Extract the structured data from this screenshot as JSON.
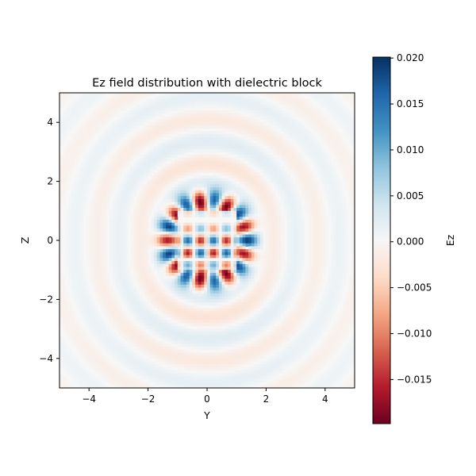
{
  "chart_data": {
    "type": "heatmap",
    "title": "Ez field distribution with dielectric block",
    "xlabel": "Y",
    "ylabel": "Z",
    "xlim": [
      -5,
      5
    ],
    "ylim": [
      -5,
      5
    ],
    "x_ticks": [
      -4,
      -2,
      0,
      2,
      4
    ],
    "y_ticks": [
      -4,
      -2,
      0,
      2,
      4
    ],
    "x_tick_labels": [
      "−4",
      "−2",
      "0",
      "2",
      "4"
    ],
    "y_tick_labels": [
      "−4",
      "−2",
      "0",
      "2",
      "4"
    ],
    "colormap": "RdBu",
    "color_range": [
      -0.02,
      0.02
    ],
    "colorbar": {
      "label": "Ez",
      "ticks": [
        0.02,
        0.015,
        0.01,
        0.005,
        0.0,
        -0.005,
        -0.01,
        -0.015
      ],
      "tick_labels": [
        "0.020",
        "0.015",
        "0.010",
        "0.005",
        "0.000",
        "−0.005",
        "−0.010",
        "−0.015"
      ],
      "min": -0.0198,
      "max": 0.0201,
      "colors": [
        "#67001f",
        "#b2182b",
        "#d6604d",
        "#f4a582",
        "#fddbc7",
        "#f7f7f7",
        "#d1e5f0",
        "#92c5de",
        "#4393c3",
        "#2166ac",
        "#053061"
      ]
    },
    "dielectric_block": {
      "y_range": [
        -1,
        1
      ],
      "z_range": [
        -1,
        1
      ]
    },
    "grid": false
  }
}
